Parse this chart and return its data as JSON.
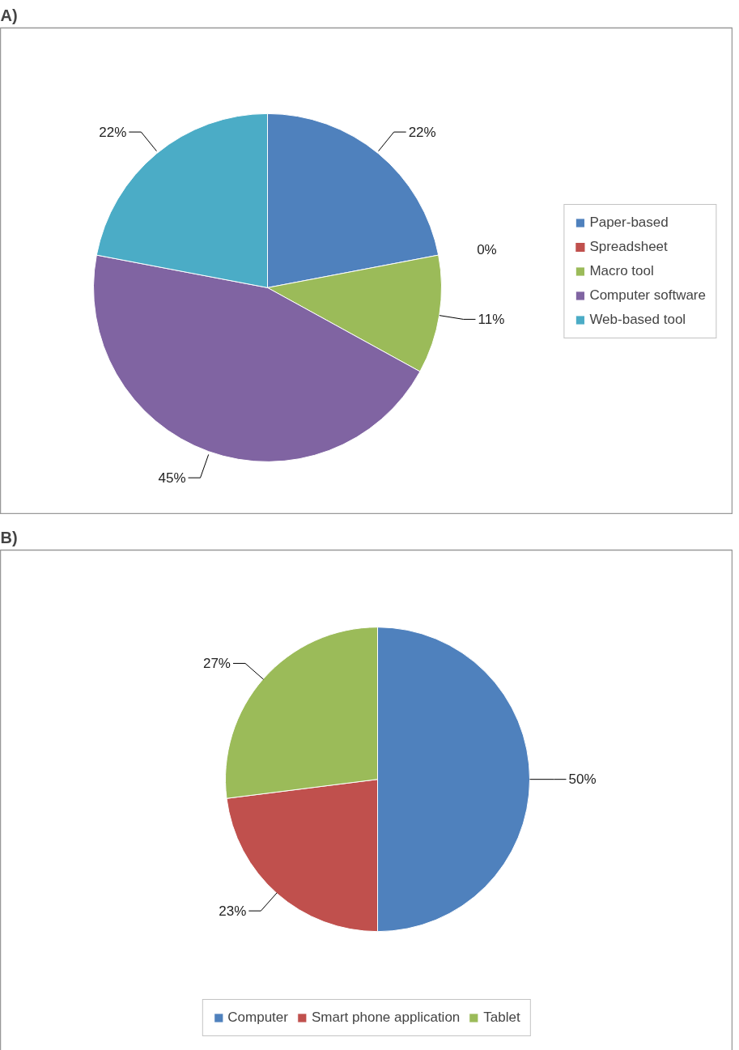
{
  "chart_data": [
    {
      "type": "pie",
      "title": "A)",
      "categories": [
        "Paper-based",
        "Spreadsheet",
        "Macro tool",
        "Computer software",
        "Web-based tool"
      ],
      "values": [
        22,
        0,
        11,
        45,
        22
      ],
      "value_labels": [
        "22%",
        "0%",
        "11%",
        "45%",
        "22%"
      ],
      "colors": [
        "#4f81bd",
        "#c0504d",
        "#9bbb59",
        "#8064a2",
        "#4bacc6"
      ],
      "legend": "right"
    },
    {
      "type": "pie",
      "title": "B)",
      "categories": [
        "Computer",
        "Smart phone application",
        "Tablet"
      ],
      "values": [
        50,
        23,
        27
      ],
      "value_labels": [
        "50%",
        "23%",
        "27%"
      ],
      "colors": [
        "#4f81bd",
        "#c0504d",
        "#9bbb59"
      ],
      "legend": "bottom"
    }
  ]
}
